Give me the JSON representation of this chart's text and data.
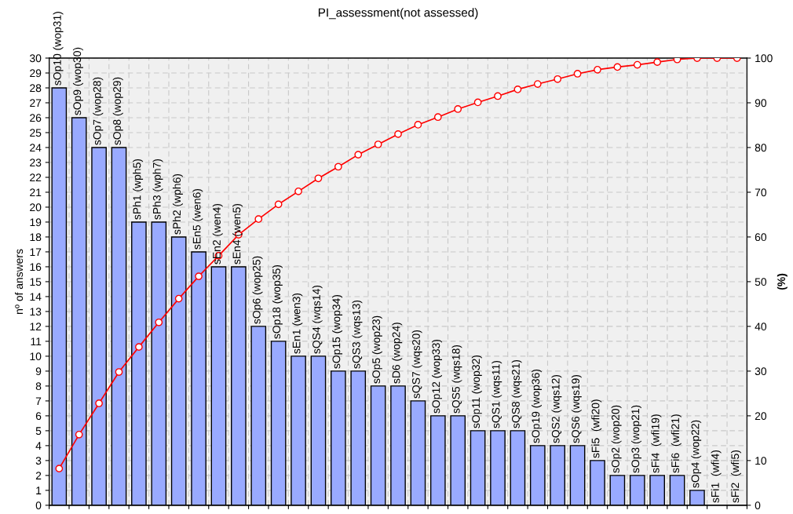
{
  "chart_data": {
    "type": "bar",
    "title": "PI_assessment(not assessed)",
    "ylabel": "nº of answers",
    "y2label": "(%)",
    "categories": [
      "sOp10 (wop31)",
      "sOp9 (wop30)",
      "sOp7 (wop28)",
      "sOp8 (wop29)",
      "sPh1 (wph5)",
      "sPh3 (wph7)",
      "sPh2 (wph6)",
      "sEn5 (wen6)",
      "sEn2 (wen4)",
      "sEn4 (wen5)",
      "sOp6 (wop25)",
      "sOp18 (wop35)",
      "sEn1 (wen3)",
      "sQS4 (wqs14)",
      "sOp15 (wop34)",
      "sQS3 (wqs13)",
      "sOp5 (wop23)",
      "sD6 (wop24)",
      "sQS7 (wqs20)",
      "sOp12 (wop33)",
      "sQS5 (wqs18)",
      "sOp11 (wop32)",
      "sQS1 (wqs11)",
      "sQS8 (wqs21)",
      "sOp19 (wop36)",
      "sQS2 (wqs12)",
      "sQS6 (wqs19)",
      "sFi5  (wfi20)",
      "sOp2 (wop20)",
      "sOp3 (wop21)",
      "sFi4  (wfi19)",
      "sFi6  (wfi21)",
      "sOp4 (wop22)",
      "sFi1  (wfi4)",
      "sFi2  (wfi5)"
    ],
    "series": [
      {
        "color": "#99aaff",
        "values": [
          28,
          26,
          24,
          24,
          19,
          19,
          18,
          17,
          16,
          16,
          12,
          11,
          10,
          10,
          9,
          9,
          8,
          8,
          7,
          6,
          6,
          5,
          5,
          5,
          4,
          4,
          4,
          3,
          2,
          2,
          2,
          2,
          1,
          0,
          0
        ]
      },
      {
        "type": "line",
        "axis": "y2",
        "color": "#ff0000",
        "marker": "circle",
        "values": [
          8.2,
          15.8,
          22.8,
          29.8,
          35.4,
          40.9,
          46.2,
          51.2,
          55.8,
          60.5,
          64.0,
          67.3,
          70.2,
          73.1,
          75.7,
          78.4,
          80.7,
          83.0,
          85.1,
          86.8,
          88.6,
          90.1,
          91.5,
          93.0,
          94.2,
          95.3,
          96.5,
          97.4,
          98.0,
          98.5,
          99.1,
          99.7,
          100,
          100,
          100
        ]
      }
    ],
    "ylim": [
      0,
      30
    ],
    "yticks": [
      0,
      1,
      2,
      3,
      4,
      5,
      6,
      7,
      8,
      9,
      10,
      11,
      12,
      13,
      14,
      15,
      16,
      17,
      18,
      19,
      20,
      21,
      22,
      23,
      24,
      25,
      26,
      27,
      28,
      29,
      30
    ],
    "y2lim": [
      0,
      100
    ],
    "y2ticks": [
      0,
      10,
      20,
      30,
      40,
      50,
      60,
      70,
      80,
      90,
      100
    ],
    "grid": true
  }
}
